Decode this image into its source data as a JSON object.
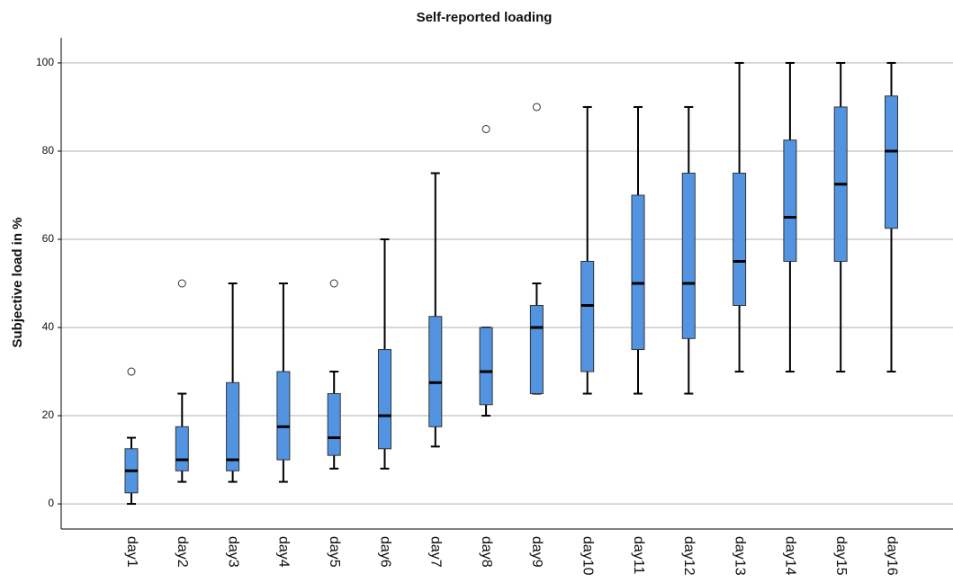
{
  "chart_data": {
    "type": "box",
    "title": "Self-reported loading",
    "y_label": "Subjective load in %",
    "categories": [
      "day1",
      "day2",
      "day3",
      "day4",
      "day5",
      "day6",
      "day7",
      "day8",
      "day9",
      "day10",
      "day11",
      "day12",
      "day13",
      "day14",
      "day15",
      "day16"
    ],
    "color": "#5294e2",
    "boxes": [
      {
        "min": 0,
        "q1": 2.5,
        "median": 7.5,
        "q3": 12.5,
        "max": 15,
        "outliers": [
          30
        ]
      },
      {
        "min": 5,
        "q1": 7.5,
        "median": 10,
        "q3": 17.5,
        "max": 25,
        "outliers": [
          50
        ]
      },
      {
        "min": 5,
        "q1": 7.5,
        "median": 10,
        "q3": 27.5,
        "max": 50,
        "outliers": []
      },
      {
        "min": 5,
        "q1": 10,
        "median": 17.5,
        "q3": 30,
        "max": 50,
        "outliers": []
      },
      {
        "min": 8,
        "q1": 11,
        "median": 15,
        "q3": 25,
        "max": 30,
        "outliers": [
          50
        ]
      },
      {
        "min": 8,
        "q1": 12.5,
        "median": 20,
        "q3": 35,
        "max": 60,
        "outliers": []
      },
      {
        "min": 13,
        "q1": 17.5,
        "median": 27.5,
        "q3": 42.5,
        "max": 75,
        "outliers": []
      },
      {
        "min": 20,
        "q1": 22.5,
        "median": 30,
        "q3": 40,
        "max": 40,
        "outliers": [
          85
        ]
      },
      {
        "min": 25,
        "q1": 25,
        "median": 40,
        "q3": 45,
        "max": 50,
        "outliers": [
          90
        ]
      },
      {
        "min": 25,
        "q1": 30,
        "median": 45,
        "q3": 55,
        "max": 90,
        "outliers": []
      },
      {
        "min": 25,
        "q1": 35,
        "median": 50,
        "q3": 70,
        "max": 90,
        "outliers": []
      },
      {
        "min": 25,
        "q1": 37.5,
        "median": 50,
        "q3": 75,
        "max": 90,
        "outliers": []
      },
      {
        "min": 30,
        "q1": 45,
        "median": 55,
        "q3": 75,
        "max": 100,
        "outliers": []
      },
      {
        "min": 30,
        "q1": 55,
        "median": 65,
        "q3": 82.5,
        "max": 100,
        "outliers": []
      },
      {
        "min": 30,
        "q1": 55,
        "median": 72.5,
        "q3": 90,
        "max": 100,
        "outliers": []
      },
      {
        "min": 30,
        "q1": 62.5,
        "median": 80,
        "q3": 92.5,
        "max": 100,
        "outliers": []
      }
    ],
    "ylim": [
      -5.7,
      105.7
    ],
    "yticks": [
      0,
      20,
      40,
      60,
      80,
      100
    ],
    "grid": true
  }
}
